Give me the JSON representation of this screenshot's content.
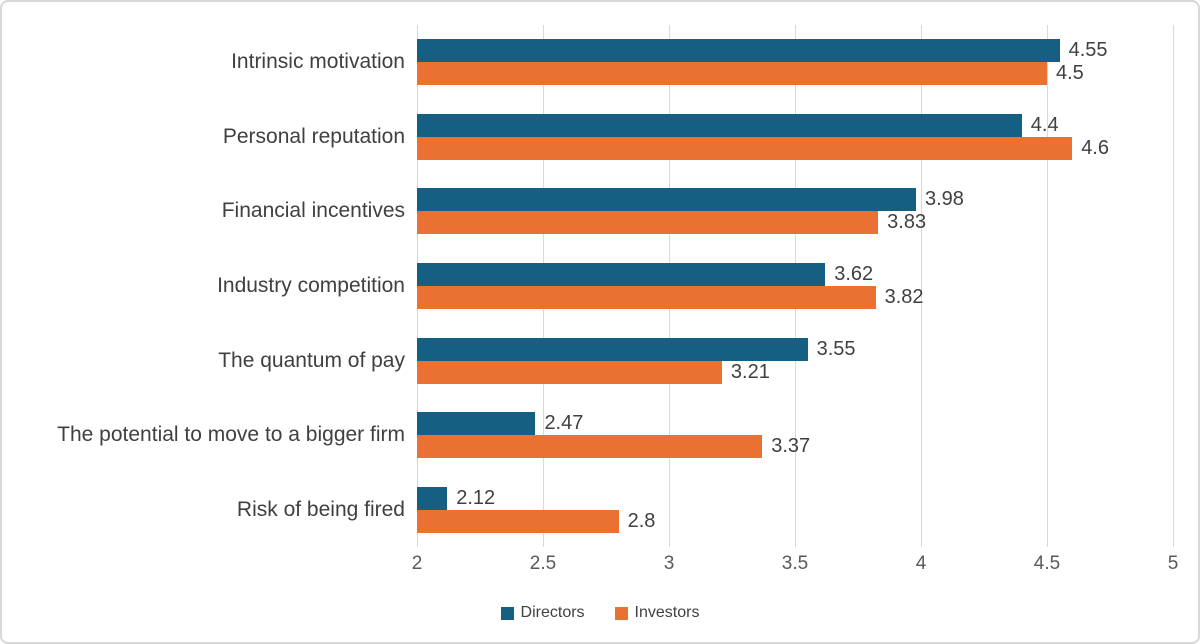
{
  "chart_data": {
    "type": "bar",
    "orientation": "horizontal",
    "title": "",
    "xlabel": "",
    "ylabel": "",
    "categories": [
      "Intrinsic motivation",
      "Personal reputation",
      "Financial incentives",
      "Industry competition",
      "The quantum of pay",
      "The potential to move to a bigger firm",
      "Risk of being fired"
    ],
    "series": [
      {
        "name": "Directors",
        "color": "#156082",
        "values": [
          4.55,
          4.4,
          3.98,
          3.62,
          3.55,
          2.47,
          2.12
        ]
      },
      {
        "name": "Investors",
        "color": "#E97132",
        "values": [
          4.5,
          4.6,
          3.83,
          3.82,
          3.21,
          3.37,
          2.8
        ]
      }
    ],
    "xlim": [
      2,
      5
    ],
    "xticks": [
      2,
      2.5,
      3,
      3.5,
      4,
      4.5,
      5
    ],
    "xtick_labels": [
      "2",
      "2.5",
      "3",
      "3.5",
      "4",
      "4.5",
      "5"
    ],
    "grid": true,
    "data_labels": true,
    "legend_position": "bottom",
    "colors": {
      "gridline": "#d9d9d9",
      "category_text": "#404040",
      "data_label_text": "#404040",
      "tick_text": "#595959",
      "frame_border": "#d8d8d8",
      "background": "#ffffff"
    }
  }
}
